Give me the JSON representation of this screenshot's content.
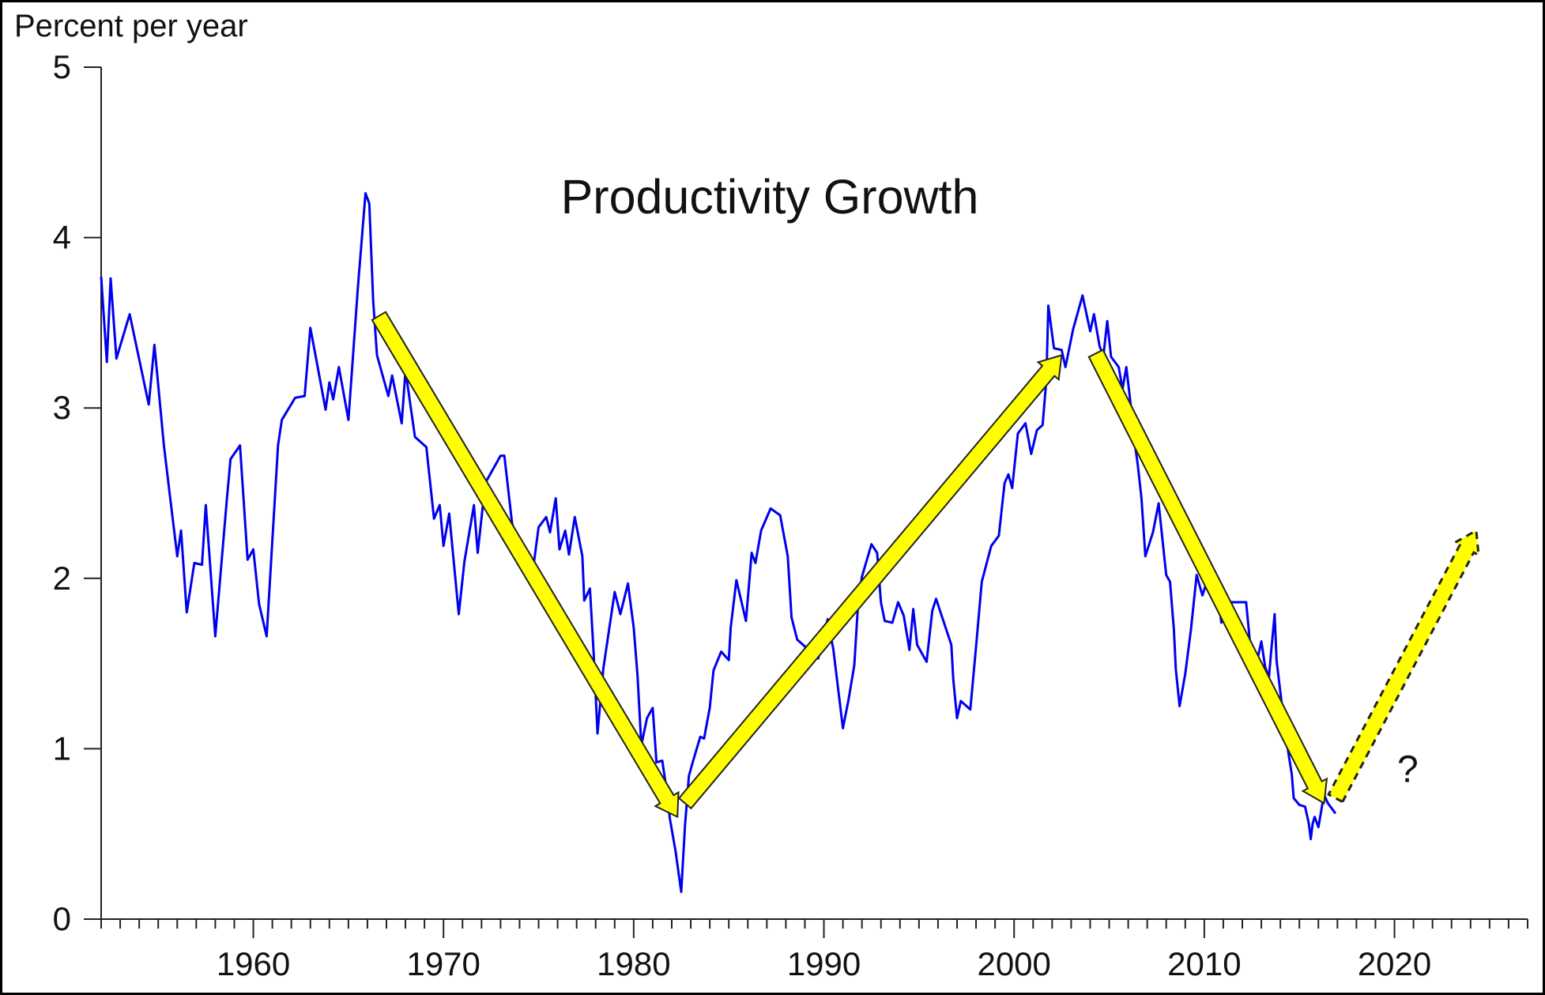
{
  "chart_data": {
    "type": "line",
    "title": "Productivity Growth",
    "ylabel": "Percent per year",
    "xlabel": "",
    "xlim": [
      1952,
      2027
    ],
    "ylim": [
      0,
      5
    ],
    "yticks": [
      0,
      1,
      2,
      3,
      4,
      5
    ],
    "xticks": [
      1960,
      1970,
      1980,
      1990,
      2000,
      2010,
      2020
    ],
    "xtick_labels": [
      "1960",
      "1970",
      "1980",
      "1990",
      "2000",
      "2010",
      "2020"
    ],
    "ytick_labels": [
      "0",
      "1",
      "2",
      "3",
      "4",
      "5"
    ],
    "minor_xtick_step": 1,
    "grid": false,
    "legend": "none",
    "series": [
      {
        "name": "Productivity Growth",
        "color": "#0000ee",
        "x": [
          1952.0,
          1952.3,
          1952.5,
          1952.8,
          1953.5,
          1954.5,
          1954.8,
          1955.3,
          1955.6,
          1956.0,
          1956.2,
          1956.5,
          1956.9,
          1957.3,
          1957.5,
          1958.0,
          1958.6,
          1958.8,
          1959.3,
          1959.7,
          1960.0,
          1960.3,
          1960.7,
          1961.3,
          1961.5,
          1962.2,
          1962.7,
          1963.0,
          1963.3,
          1963.8,
          1964.0,
          1964.2,
          1964.5,
          1965.0,
          1965.5,
          1965.9,
          1966.1,
          1966.3,
          1966.5,
          1967.1,
          1967.3,
          1967.8,
          1968.0,
          1968.5,
          1969.1,
          1969.5,
          1969.8,
          1970.0,
          1970.3,
          1970.8,
          1971.1,
          1971.6,
          1971.8,
          1972.2,
          1973.0,
          1973.2,
          1973.6,
          1974.1,
          1974.6,
          1975.0,
          1975.4,
          1975.6,
          1975.9,
          1976.1,
          1976.4,
          1976.6,
          1976.9,
          1977.3,
          1977.4,
          1977.7,
          1977.9,
          1978.1,
          1978.4,
          1979.0,
          1979.3,
          1979.7,
          1980.0,
          1980.2,
          1980.4,
          1980.7,
          1981.0,
          1981.2,
          1981.5,
          1981.7,
          1981.9,
          1982.2,
          1982.5,
          1982.7,
          1982.9,
          1983.1,
          1983.5,
          1983.7,
          1984.0,
          1984.2,
          1984.6,
          1985.0,
          1985.1,
          1985.4,
          1985.9,
          1986.2,
          1986.4,
          1986.7,
          1987.2,
          1987.7,
          1988.1,
          1988.3,
          1988.6,
          1989.0,
          1989.7,
          1990.2,
          1990.5,
          1991.0,
          1991.3,
          1991.6,
          1991.8,
          1992.0,
          1992.5,
          1992.8,
          1993.0,
          1993.2,
          1993.6,
          1993.9,
          1994.2,
          1994.5,
          1994.7,
          1994.9,
          1995.4,
          1995.7,
          1995.9,
          1996.4,
          1996.7,
          1996.8,
          1997.0,
          1997.2,
          1997.7,
          1998.0,
          1998.3,
          1998.8,
          1999.2,
          1999.5,
          1999.7,
          1999.9,
          2000.2,
          2000.6,
          2000.9,
          2001.2,
          2001.5,
          2001.7,
          2001.8,
          2002.1,
          2002.5,
          2002.7,
          2003.1,
          2003.6,
          2004.0,
          2004.2,
          2004.5,
          2004.7,
          2004.9,
          2005.1,
          2005.5,
          2005.7,
          2005.9,
          2006.1,
          2006.3,
          2006.5,
          2006.7,
          2006.9,
          2007.3,
          2007.6,
          2007.8,
          2008.0,
          2008.2,
          2008.4,
          2008.5,
          2008.7,
          2009.0,
          2009.3,
          2009.6,
          2009.9,
          2010.1,
          2010.6,
          2010.9,
          2011.3,
          2012.2,
          2012.4,
          2012.8,
          2013.0,
          2013.2,
          2013.4,
          2013.5,
          2013.7,
          2013.8,
          2014.1,
          2014.4,
          2014.6,
          2014.7,
          2015.0,
          2015.3,
          2015.5,
          2015.6,
          2015.7,
          2015.8,
          2016.0,
          2016.2,
          2016.3,
          2016.5,
          2016.9
        ],
        "y": [
          3.77,
          3.27,
          3.76,
          3.29,
          3.55,
          3.02,
          3.37,
          2.78,
          2.5,
          2.13,
          2.28,
          1.8,
          2.09,
          2.08,
          2.43,
          1.66,
          2.45,
          2.7,
          2.78,
          2.11,
          2.17,
          1.85,
          1.66,
          2.78,
          2.93,
          3.06,
          3.07,
          3.47,
          3.29,
          2.99,
          3.15,
          3.05,
          3.24,
          2.93,
          3.71,
          4.26,
          4.2,
          3.63,
          3.31,
          3.07,
          3.19,
          2.91,
          3.22,
          2.83,
          2.77,
          2.35,
          2.43,
          2.19,
          2.38,
          1.79,
          2.1,
          2.43,
          2.15,
          2.56,
          2.72,
          2.72,
          2.33,
          2.07,
          1.96,
          2.3,
          2.36,
          2.27,
          2.47,
          2.17,
          2.28,
          2.14,
          2.36,
          2.13,
          1.87,
          1.94,
          1.55,
          1.09,
          1.47,
          1.92,
          1.79,
          1.97,
          1.71,
          1.43,
          1.02,
          1.18,
          1.24,
          0.92,
          0.93,
          0.78,
          0.59,
          0.4,
          0.16,
          0.55,
          0.84,
          0.92,
          1.07,
          1.06,
          1.24,
          1.46,
          1.57,
          1.52,
          1.71,
          1.99,
          1.75,
          2.15,
          2.09,
          2.28,
          2.41,
          2.37,
          2.13,
          1.77,
          1.64,
          1.6,
          1.53,
          1.76,
          1.58,
          1.12,
          1.29,
          1.49,
          1.86,
          2.01,
          2.2,
          2.15,
          1.86,
          1.75,
          1.74,
          1.86,
          1.78,
          1.58,
          1.82,
          1.61,
          1.51,
          1.81,
          1.88,
          1.71,
          1.61,
          1.41,
          1.18,
          1.28,
          1.23,
          1.6,
          1.98,
          2.19,
          2.25,
          2.56,
          2.61,
          2.53,
          2.85,
          2.91,
          2.73,
          2.87,
          2.9,
          3.17,
          3.6,
          3.35,
          3.34,
          3.24,
          3.46,
          3.66,
          3.45,
          3.55,
          3.36,
          3.31,
          3.51,
          3.3,
          3.24,
          3.11,
          3.24,
          3.05,
          2.83,
          2.67,
          2.47,
          2.13,
          2.27,
          2.44,
          2.23,
          2.02,
          1.98,
          1.7,
          1.47,
          1.25,
          1.44,
          1.7,
          2.02,
          1.9,
          1.97,
          2.01,
          1.74,
          1.86,
          1.86,
          1.63,
          1.53,
          1.63,
          1.48,
          1.42,
          1.55,
          1.79,
          1.52,
          1.24,
          0.99,
          0.85,
          0.71,
          0.67,
          0.66,
          0.56,
          0.47,
          0.56,
          0.6,
          0.54,
          0.67,
          0.73,
          0.68,
          0.62
        ]
      }
    ],
    "annotations": {
      "arrows": [
        {
          "name": "decline-1966-1982",
          "from": [
            1966.6,
            3.54
          ],
          "to": [
            1982.3,
            0.6
          ],
          "style": "solid",
          "color": "#ffff00"
        },
        {
          "name": "rise-1982-2002",
          "from": [
            1982.7,
            0.68
          ],
          "to": [
            2002.5,
            3.31
          ],
          "style": "solid",
          "color": "#ffff00"
        },
        {
          "name": "decline-2004-2016",
          "from": [
            2004.3,
            3.32
          ],
          "to": [
            2016.3,
            0.68
          ],
          "style": "solid",
          "color": "#ffff00"
        },
        {
          "name": "future-rise",
          "from": [
            2016.9,
            0.71
          ],
          "to": [
            2024.3,
            2.28
          ],
          "style": "dashed",
          "color": "#ffff00"
        }
      ],
      "question_mark": {
        "text": "?",
        "x": 2020.7,
        "y": 0.88
      }
    }
  }
}
